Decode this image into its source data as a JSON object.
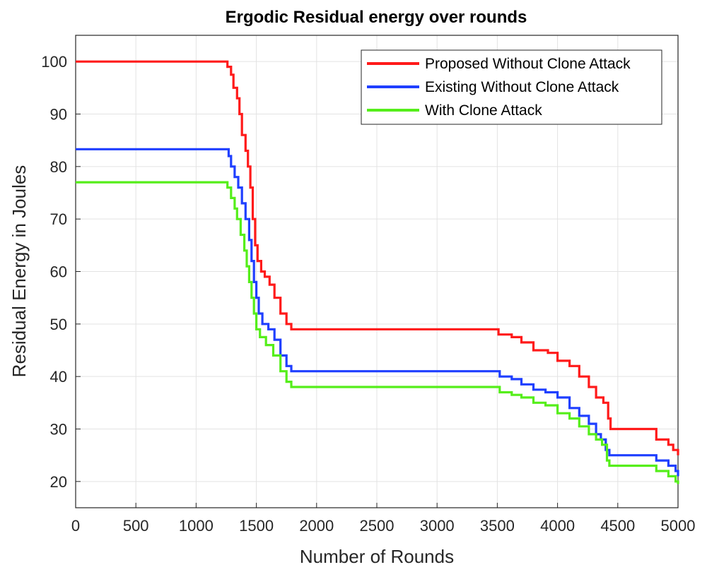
{
  "chart_data": {
    "type": "line",
    "title": "Ergodic Residual energy over rounds",
    "xlabel": "Number of Rounds",
    "ylabel": "Residual Energy in Joules",
    "xlim": [
      0,
      5000
    ],
    "ylim": [
      15,
      105
    ],
    "xticks": [
      0,
      500,
      1000,
      1500,
      2000,
      2500,
      3000,
      3500,
      4000,
      4500,
      5000
    ],
    "yticks": [
      20,
      30,
      40,
      50,
      60,
      70,
      80,
      90,
      100
    ],
    "grid": true,
    "legend_position": "top-right",
    "series": [
      {
        "name": "Proposed Without Clone Attack",
        "color": "#ff1a1a",
        "points": [
          [
            0,
            100
          ],
          [
            1230,
            100
          ],
          [
            1260,
            99
          ],
          [
            1290,
            97.5
          ],
          [
            1310,
            95
          ],
          [
            1340,
            93
          ],
          [
            1360,
            90
          ],
          [
            1380,
            86
          ],
          [
            1410,
            83
          ],
          [
            1430,
            80
          ],
          [
            1450,
            76
          ],
          [
            1470,
            70
          ],
          [
            1490,
            65
          ],
          [
            1510,
            62
          ],
          [
            1540,
            60
          ],
          [
            1570,
            59
          ],
          [
            1610,
            57.5
          ],
          [
            1650,
            55
          ],
          [
            1700,
            52
          ],
          [
            1750,
            50
          ],
          [
            1790,
            49
          ],
          [
            3500,
            49
          ],
          [
            3510,
            48
          ],
          [
            3620,
            47.5
          ],
          [
            3700,
            46.5
          ],
          [
            3800,
            45
          ],
          [
            3920,
            44.5
          ],
          [
            4000,
            43
          ],
          [
            4100,
            42
          ],
          [
            4180,
            40
          ],
          [
            4260,
            38
          ],
          [
            4320,
            36
          ],
          [
            4380,
            35
          ],
          [
            4420,
            32
          ],
          [
            4440,
            30
          ],
          [
            4760,
            30
          ],
          [
            4820,
            28
          ],
          [
            4920,
            27
          ],
          [
            4960,
            26
          ],
          [
            5000,
            25
          ]
        ]
      },
      {
        "name": "Existing Without Clone Attack",
        "color": "#1f3fff",
        "points": [
          [
            0,
            83.3
          ],
          [
            1240,
            83.3
          ],
          [
            1270,
            82
          ],
          [
            1290,
            80
          ],
          [
            1320,
            78
          ],
          [
            1350,
            76
          ],
          [
            1380,
            73
          ],
          [
            1410,
            70
          ],
          [
            1440,
            66
          ],
          [
            1460,
            62
          ],
          [
            1480,
            58
          ],
          [
            1500,
            55
          ],
          [
            1520,
            52
          ],
          [
            1550,
            50
          ],
          [
            1600,
            49
          ],
          [
            1650,
            47
          ],
          [
            1700,
            44
          ],
          [
            1750,
            42
          ],
          [
            1790,
            41
          ],
          [
            3500,
            41
          ],
          [
            3520,
            40
          ],
          [
            3620,
            39.5
          ],
          [
            3700,
            38.5
          ],
          [
            3800,
            37.5
          ],
          [
            3900,
            37
          ],
          [
            4000,
            36
          ],
          [
            4100,
            34
          ],
          [
            4180,
            32.5
          ],
          [
            4260,
            31
          ],
          [
            4320,
            29
          ],
          [
            4360,
            28
          ],
          [
            4400,
            26
          ],
          [
            4430,
            25
          ],
          [
            4760,
            25
          ],
          [
            4820,
            24
          ],
          [
            4920,
            23
          ],
          [
            4980,
            22
          ],
          [
            5000,
            21
          ]
        ]
      },
      {
        "name": "With Clone Attack",
        "color": "#55ee1a",
        "points": [
          [
            0,
            77
          ],
          [
            1230,
            77
          ],
          [
            1260,
            76
          ],
          [
            1290,
            74
          ],
          [
            1320,
            72
          ],
          [
            1340,
            70
          ],
          [
            1370,
            67
          ],
          [
            1400,
            64
          ],
          [
            1420,
            61
          ],
          [
            1440,
            58
          ],
          [
            1460,
            55
          ],
          [
            1480,
            52
          ],
          [
            1500,
            49
          ],
          [
            1530,
            47.5
          ],
          [
            1580,
            46
          ],
          [
            1640,
            44
          ],
          [
            1700,
            41
          ],
          [
            1750,
            39
          ],
          [
            1790,
            38
          ],
          [
            3500,
            38
          ],
          [
            3520,
            37
          ],
          [
            3620,
            36.5
          ],
          [
            3700,
            36
          ],
          [
            3800,
            35
          ],
          [
            3900,
            34.5
          ],
          [
            4000,
            33
          ],
          [
            4100,
            32
          ],
          [
            4180,
            30.5
          ],
          [
            4260,
            29
          ],
          [
            4320,
            28
          ],
          [
            4370,
            27
          ],
          [
            4410,
            24
          ],
          [
            4430,
            23
          ],
          [
            4760,
            23
          ],
          [
            4820,
            22
          ],
          [
            4920,
            21
          ],
          [
            4980,
            20
          ],
          [
            5000,
            19.5
          ]
        ]
      }
    ]
  }
}
